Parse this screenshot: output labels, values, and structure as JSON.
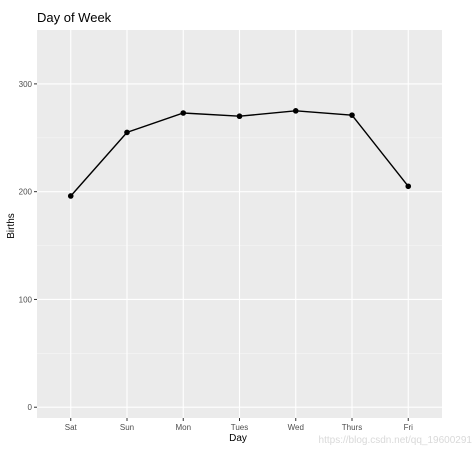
{
  "chart_data": {
    "type": "line",
    "title": "Day of Week",
    "xlabel": "Day",
    "ylabel": "Births",
    "categories": [
      "Sat",
      "Sun",
      "Mon",
      "Tues",
      "Wed",
      "Thurs",
      "Fri"
    ],
    "values": [
      196,
      255,
      273,
      270,
      275,
      271,
      205
    ],
    "ylim": [
      -10,
      350
    ],
    "yticks": [
      0,
      100,
      200,
      300
    ],
    "grid": true,
    "legend": "none",
    "colors": {
      "panel": "#ebebeb",
      "grid_major": "#ffffff",
      "line": "#000000",
      "point": "#000000"
    }
  },
  "watermark": "https://blog.csdn.net/qq_19600291"
}
